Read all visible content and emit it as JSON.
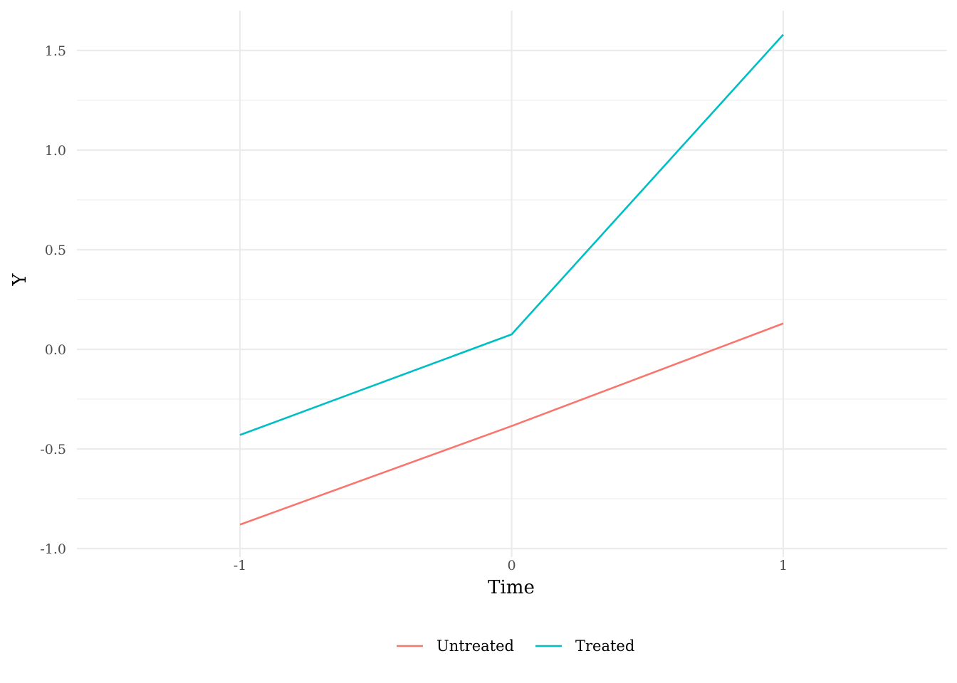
{
  "chart_data": {
    "type": "line",
    "title": "",
    "xlabel": "Time",
    "ylabel": "Y",
    "x": [
      -1,
      0,
      1
    ],
    "x_tick_labels": [
      "-1",
      "0",
      "1"
    ],
    "y_ticks": [
      -1.0,
      -0.5,
      0.0,
      0.5,
      1.0,
      1.5
    ],
    "y_tick_labels": [
      "-1.0",
      "-0.5",
      "0.0",
      "0.5",
      "1.0",
      "1.5"
    ],
    "xlim": [
      -1.6,
      1.6
    ],
    "ylim": [
      -1.0,
      1.6
    ],
    "grid": true,
    "legend_position": "bottom",
    "series": [
      {
        "name": "Untreated",
        "color": "#F8766D",
        "values": [
          -0.88,
          -0.385,
          0.13
        ]
      },
      {
        "name": "Treated",
        "color": "#00BFC4",
        "values": [
          -0.43,
          0.075,
          1.58
        ]
      }
    ]
  }
}
